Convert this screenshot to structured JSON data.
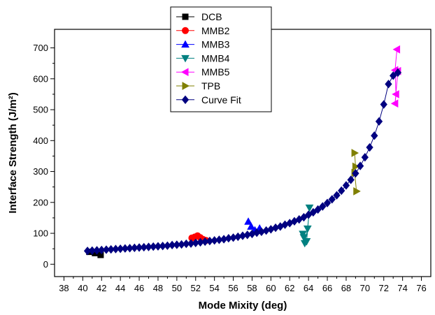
{
  "chart_data": {
    "type": "scatter",
    "xlabel": "Mode Mixity (deg)",
    "ylabel": "Interface Strength (J/m²)",
    "xlim": [
      37,
      77
    ],
    "ylim": [
      -40,
      760
    ],
    "xticks": [
      38,
      40,
      42,
      44,
      46,
      48,
      50,
      52,
      54,
      56,
      58,
      60,
      62,
      64,
      66,
      68,
      70,
      72,
      74,
      76
    ],
    "yticks": [
      0,
      100,
      200,
      300,
      400,
      500,
      600,
      700
    ],
    "legend_position": "top-center",
    "grid": false,
    "series": [
      {
        "name": "DCB",
        "marker": "square",
        "color": "#000000",
        "connected": true,
        "x": [
          40.7,
          41.3,
          41.9
        ],
        "y": [
          40,
          36,
          30
        ]
      },
      {
        "name": "MMB2",
        "marker": "circle",
        "color": "#ff0000",
        "connected": true,
        "x": [
          51.6,
          51.9,
          52.2,
          52.5,
          52.8,
          53.1
        ],
        "y": [
          85,
          88,
          92,
          86,
          80,
          77
        ]
      },
      {
        "name": "MMB3",
        "marker": "triangle-up",
        "color": "#0000ff",
        "connected": true,
        "x": [
          57.6,
          57.9,
          58.3,
          58.8
        ],
        "y": [
          138,
          122,
          110,
          116
        ]
      },
      {
        "name": "MMB4",
        "marker": "triangle-down",
        "color": "#008080",
        "connected": true,
        "x": [
          63.4,
          63.6,
          63.9,
          64.1,
          63.8,
          63.5
        ],
        "y": [
          98,
          68,
          115,
          183,
          74,
          87
        ]
      },
      {
        "name": "MMB5",
        "marker": "triangle-left",
        "color": "#ff00ff",
        "connected": true,
        "x": [
          73.4,
          73.2,
          73.3,
          73.2,
          73.5
        ],
        "y": [
          695,
          628,
          550,
          520,
          625
        ]
      },
      {
        "name": "TPB",
        "marker": "triangle-right",
        "color": "#808000",
        "connected": true,
        "x": [
          68.9,
          69.0,
          68.9,
          69.1
        ],
        "y": [
          360,
          316,
          296,
          236
        ]
      },
      {
        "name": "Curve Fit",
        "marker": "diamond",
        "color": "#000080",
        "connected": true,
        "x": [
          40.5,
          41.0,
          41.5,
          42.0,
          42.5,
          43.0,
          43.5,
          44.0,
          44.5,
          45.0,
          45.5,
          46.0,
          46.5,
          47.0,
          47.5,
          48.0,
          48.5,
          49.0,
          49.5,
          50.0,
          50.5,
          51.0,
          51.5,
          52.0,
          52.5,
          53.0,
          53.5,
          54.0,
          54.5,
          55.0,
          55.5,
          56.0,
          56.5,
          57.0,
          57.5,
          58.0,
          58.5,
          59.0,
          59.5,
          60.0,
          60.5,
          61.0,
          61.5,
          62.0,
          62.5,
          63.0,
          63.5,
          64.0,
          64.5,
          65.0,
          65.5,
          66.0,
          66.5,
          67.0,
          67.5,
          68.0,
          68.5,
          69.0,
          69.5,
          70.0,
          70.5,
          71.0,
          71.5,
          72.0,
          72.5,
          73.0,
          73.5
        ],
        "y": [
          43,
          44,
          45,
          46,
          47,
          48,
          49,
          50,
          51,
          52,
          53,
          54,
          55,
          56,
          57,
          58,
          59,
          60,
          62,
          63,
          64,
          66,
          67,
          69,
          71,
          73,
          75,
          77,
          79,
          81,
          84,
          86,
          89,
          92,
          95,
          98,
          102,
          105,
          109,
          113,
          118,
          122,
          128,
          133,
          139,
          145,
          152,
          160,
          168,
          177,
          187,
          198,
          210,
          223,
          238,
          255,
          273,
          294,
          318,
          346,
          378,
          416,
          462,
          517,
          583,
          610,
          620
        ]
      }
    ]
  }
}
